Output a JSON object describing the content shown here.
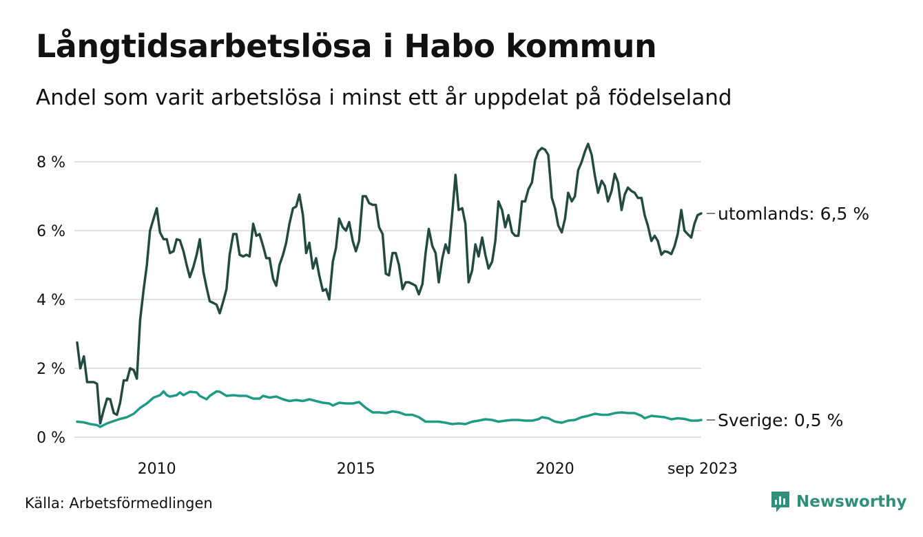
{
  "title": "Långtidsarbetslösa i Habo kommun",
  "subtitle": "Andel som varit arbetslösa i minst ett år uppdelat på födelseland",
  "source": "Källa: Arbetsförmedlingen",
  "brand": {
    "name": "Newsworthy",
    "icon": "newsworthy-logo-icon",
    "color": "#2f8f7a"
  },
  "chart_data": {
    "type": "line",
    "title": "Långtidsarbetslösa i Habo kommun",
    "xlabel": "",
    "ylabel": "",
    "xlim": [
      2008.0,
      2023.67
    ],
    "ylim": [
      0,
      8.6
    ],
    "yticks": [
      0,
      2,
      4,
      6,
      8
    ],
    "ytick_labels": [
      "0 %",
      "2 %",
      "4 %",
      "6 %",
      "8 %"
    ],
    "xticks": [
      2010,
      2015,
      2020,
      2023.67
    ],
    "xtick_labels": [
      "2010",
      "2015",
      "2020",
      "sep 2023"
    ],
    "grid": true,
    "series": [
      {
        "name": "utomlands",
        "end_label": "utomlands: 6,5 %",
        "color": "#234a40",
        "points": [
          [
            2008.0,
            2.75
          ],
          [
            2008.08,
            2.0
          ],
          [
            2008.17,
            2.35
          ],
          [
            2008.25,
            1.6
          ],
          [
            2008.42,
            1.6
          ],
          [
            2008.5,
            1.55
          ],
          [
            2008.58,
            0.4
          ],
          [
            2008.67,
            0.8
          ],
          [
            2008.75,
            1.12
          ],
          [
            2008.83,
            1.1
          ],
          [
            2008.92,
            0.7
          ],
          [
            2009.0,
            0.65
          ],
          [
            2009.08,
            1.0
          ],
          [
            2009.17,
            1.65
          ],
          [
            2009.25,
            1.65
          ],
          [
            2009.33,
            2.0
          ],
          [
            2009.42,
            1.95
          ],
          [
            2009.5,
            1.7
          ],
          [
            2009.58,
            3.4
          ],
          [
            2009.67,
            4.3
          ],
          [
            2009.75,
            5.0
          ],
          [
            2009.83,
            6.0
          ],
          [
            2009.92,
            6.35
          ],
          [
            2010.0,
            6.65
          ],
          [
            2010.08,
            5.95
          ],
          [
            2010.17,
            5.75
          ],
          [
            2010.25,
            5.75
          ],
          [
            2010.33,
            5.35
          ],
          [
            2010.42,
            5.4
          ],
          [
            2010.5,
            5.75
          ],
          [
            2010.58,
            5.72
          ],
          [
            2010.67,
            5.4
          ],
          [
            2010.75,
            5.0
          ],
          [
            2010.83,
            4.65
          ],
          [
            2010.92,
            4.95
          ],
          [
            2011.0,
            5.3
          ],
          [
            2011.08,
            5.75
          ],
          [
            2011.17,
            4.8
          ],
          [
            2011.25,
            4.35
          ],
          [
            2011.33,
            3.95
          ],
          [
            2011.42,
            3.9
          ],
          [
            2011.5,
            3.85
          ],
          [
            2011.58,
            3.6
          ],
          [
            2011.67,
            3.95
          ],
          [
            2011.75,
            4.3
          ],
          [
            2011.83,
            5.3
          ],
          [
            2011.92,
            5.9
          ],
          [
            2012.0,
            5.9
          ],
          [
            2012.08,
            5.3
          ],
          [
            2012.17,
            5.25
          ],
          [
            2012.25,
            5.3
          ],
          [
            2012.33,
            5.25
          ],
          [
            2012.42,
            6.2
          ],
          [
            2012.5,
            5.85
          ],
          [
            2012.58,
            5.9
          ],
          [
            2012.67,
            5.55
          ],
          [
            2012.75,
            5.2
          ],
          [
            2012.83,
            5.2
          ],
          [
            2012.92,
            4.6
          ],
          [
            2013.0,
            4.4
          ],
          [
            2013.08,
            5.0
          ],
          [
            2013.17,
            5.3
          ],
          [
            2013.25,
            5.65
          ],
          [
            2013.33,
            6.2
          ],
          [
            2013.42,
            6.65
          ],
          [
            2013.5,
            6.7
          ],
          [
            2013.58,
            7.05
          ],
          [
            2013.67,
            6.45
          ],
          [
            2013.75,
            5.35
          ],
          [
            2013.83,
            5.65
          ],
          [
            2013.92,
            4.9
          ],
          [
            2014.0,
            5.2
          ],
          [
            2014.08,
            4.7
          ],
          [
            2014.17,
            4.25
          ],
          [
            2014.25,
            4.3
          ],
          [
            2014.33,
            4.0
          ],
          [
            2014.42,
            5.1
          ],
          [
            2014.5,
            5.5
          ],
          [
            2014.58,
            6.35
          ],
          [
            2014.67,
            6.1
          ],
          [
            2014.75,
            6.0
          ],
          [
            2014.83,
            6.25
          ],
          [
            2014.92,
            5.7
          ],
          [
            2015.0,
            5.4
          ],
          [
            2015.08,
            5.7
          ],
          [
            2015.17,
            7.0
          ],
          [
            2015.25,
            7.0
          ],
          [
            2015.33,
            6.8
          ],
          [
            2015.42,
            6.75
          ],
          [
            2015.5,
            6.75
          ],
          [
            2015.58,
            6.1
          ],
          [
            2015.67,
            5.9
          ],
          [
            2015.75,
            4.75
          ],
          [
            2015.83,
            4.7
          ],
          [
            2015.92,
            5.35
          ],
          [
            2016.0,
            5.35
          ],
          [
            2016.08,
            5.0
          ],
          [
            2016.17,
            4.3
          ],
          [
            2016.25,
            4.5
          ],
          [
            2016.33,
            4.5
          ],
          [
            2016.42,
            4.45
          ],
          [
            2016.5,
            4.4
          ],
          [
            2016.58,
            4.15
          ],
          [
            2016.67,
            4.45
          ],
          [
            2016.75,
            5.35
          ],
          [
            2016.83,
            6.05
          ],
          [
            2016.92,
            5.55
          ],
          [
            2017.0,
            5.35
          ],
          [
            2017.08,
            4.5
          ],
          [
            2017.17,
            5.2
          ],
          [
            2017.25,
            5.6
          ],
          [
            2017.33,
            5.35
          ],
          [
            2017.42,
            6.5
          ],
          [
            2017.5,
            7.62
          ],
          [
            2017.58,
            6.6
          ],
          [
            2017.67,
            6.65
          ],
          [
            2017.75,
            6.2
          ],
          [
            2017.83,
            4.5
          ],
          [
            2017.92,
            4.85
          ],
          [
            2018.0,
            5.6
          ],
          [
            2018.08,
            5.25
          ],
          [
            2018.17,
            5.8
          ],
          [
            2018.25,
            5.3
          ],
          [
            2018.33,
            4.9
          ],
          [
            2018.42,
            5.1
          ],
          [
            2018.5,
            5.7
          ],
          [
            2018.58,
            6.85
          ],
          [
            2018.67,
            6.6
          ],
          [
            2018.75,
            6.1
          ],
          [
            2018.83,
            6.45
          ],
          [
            2018.92,
            5.95
          ],
          [
            2019.0,
            5.85
          ],
          [
            2019.08,
            5.85
          ],
          [
            2019.17,
            6.85
          ],
          [
            2019.25,
            6.85
          ],
          [
            2019.33,
            7.2
          ],
          [
            2019.42,
            7.4
          ],
          [
            2019.5,
            8.05
          ],
          [
            2019.58,
            8.3
          ],
          [
            2019.67,
            8.4
          ],
          [
            2019.75,
            8.35
          ],
          [
            2019.83,
            8.2
          ],
          [
            2019.92,
            6.95
          ],
          [
            2020.0,
            6.65
          ],
          [
            2020.08,
            6.15
          ],
          [
            2020.17,
            5.95
          ],
          [
            2020.25,
            6.35
          ],
          [
            2020.33,
            7.1
          ],
          [
            2020.42,
            6.85
          ],
          [
            2020.5,
            7.0
          ],
          [
            2020.58,
            7.75
          ],
          [
            2020.67,
            8.0
          ],
          [
            2020.75,
            8.3
          ],
          [
            2020.83,
            8.52
          ],
          [
            2020.92,
            8.2
          ],
          [
            2021.0,
            7.6
          ],
          [
            2021.08,
            7.1
          ],
          [
            2021.17,
            7.45
          ],
          [
            2021.25,
            7.3
          ],
          [
            2021.33,
            6.85
          ],
          [
            2021.42,
            7.15
          ],
          [
            2021.5,
            7.65
          ],
          [
            2021.58,
            7.4
          ],
          [
            2021.67,
            6.6
          ],
          [
            2021.75,
            7.05
          ],
          [
            2021.83,
            7.25
          ],
          [
            2021.92,
            7.15
          ],
          [
            2022.0,
            7.1
          ],
          [
            2022.08,
            6.95
          ],
          [
            2022.17,
            6.95
          ],
          [
            2022.25,
            6.45
          ],
          [
            2022.33,
            6.15
          ],
          [
            2022.42,
            5.7
          ],
          [
            2022.5,
            5.85
          ],
          [
            2022.58,
            5.7
          ],
          [
            2022.67,
            5.3
          ],
          [
            2022.75,
            5.4
          ],
          [
            2022.83,
            5.38
          ],
          [
            2022.92,
            5.32
          ],
          [
            2023.0,
            5.55
          ],
          [
            2023.08,
            5.9
          ],
          [
            2023.17,
            6.6
          ],
          [
            2023.25,
            6.0
          ],
          [
            2023.33,
            5.9
          ],
          [
            2023.42,
            5.8
          ],
          [
            2023.5,
            6.2
          ],
          [
            2023.58,
            6.45
          ],
          [
            2023.67,
            6.5
          ]
        ]
      },
      {
        "name": "Sverige",
        "end_label": "Sverige: 0,5 %",
        "color": "#1f9a86",
        "points": [
          [
            2008.0,
            0.45
          ],
          [
            2008.17,
            0.43
          ],
          [
            2008.33,
            0.38
          ],
          [
            2008.5,
            0.35
          ],
          [
            2008.58,
            0.3
          ],
          [
            2008.75,
            0.4
          ],
          [
            2008.92,
            0.47
          ],
          [
            2009.08,
            0.53
          ],
          [
            2009.25,
            0.58
          ],
          [
            2009.42,
            0.68
          ],
          [
            2009.58,
            0.85
          ],
          [
            2009.75,
            0.98
          ],
          [
            2009.92,
            1.15
          ],
          [
            2010.08,
            1.22
          ],
          [
            2010.17,
            1.33
          ],
          [
            2010.25,
            1.22
          ],
          [
            2010.33,
            1.18
          ],
          [
            2010.5,
            1.22
          ],
          [
            2010.58,
            1.3
          ],
          [
            2010.67,
            1.22
          ],
          [
            2010.75,
            1.27
          ],
          [
            2010.83,
            1.32
          ],
          [
            2011.0,
            1.3
          ],
          [
            2011.08,
            1.2
          ],
          [
            2011.25,
            1.1
          ],
          [
            2011.33,
            1.2
          ],
          [
            2011.5,
            1.33
          ],
          [
            2011.58,
            1.32
          ],
          [
            2011.75,
            1.2
          ],
          [
            2011.92,
            1.22
          ],
          [
            2012.08,
            1.2
          ],
          [
            2012.25,
            1.2
          ],
          [
            2012.42,
            1.12
          ],
          [
            2012.58,
            1.12
          ],
          [
            2012.67,
            1.2
          ],
          [
            2012.83,
            1.15
          ],
          [
            2013.0,
            1.18
          ],
          [
            2013.17,
            1.1
          ],
          [
            2013.33,
            1.05
          ],
          [
            2013.5,
            1.08
          ],
          [
            2013.67,
            1.05
          ],
          [
            2013.83,
            1.1
          ],
          [
            2014.0,
            1.05
          ],
          [
            2014.17,
            1.0
          ],
          [
            2014.33,
            0.98
          ],
          [
            2014.42,
            0.92
          ],
          [
            2014.58,
            1.0
          ],
          [
            2014.75,
            0.98
          ],
          [
            2014.92,
            0.98
          ],
          [
            2015.08,
            1.02
          ],
          [
            2015.25,
            0.85
          ],
          [
            2015.42,
            0.72
          ],
          [
            2015.58,
            0.72
          ],
          [
            2015.75,
            0.7
          ],
          [
            2015.92,
            0.75
          ],
          [
            2016.08,
            0.72
          ],
          [
            2016.25,
            0.65
          ],
          [
            2016.42,
            0.65
          ],
          [
            2016.58,
            0.58
          ],
          [
            2016.75,
            0.45
          ],
          [
            2016.92,
            0.45
          ],
          [
            2017.08,
            0.45
          ],
          [
            2017.25,
            0.42
          ],
          [
            2017.42,
            0.38
          ],
          [
            2017.58,
            0.4
          ],
          [
            2017.75,
            0.38
          ],
          [
            2017.92,
            0.45
          ],
          [
            2018.08,
            0.48
          ],
          [
            2018.25,
            0.52
          ],
          [
            2018.42,
            0.5
          ],
          [
            2018.58,
            0.45
          ],
          [
            2018.75,
            0.48
          ],
          [
            2018.92,
            0.5
          ],
          [
            2019.08,
            0.5
          ],
          [
            2019.25,
            0.48
          ],
          [
            2019.42,
            0.48
          ],
          [
            2019.58,
            0.52
          ],
          [
            2019.67,
            0.58
          ],
          [
            2019.83,
            0.55
          ],
          [
            2020.0,
            0.45
          ],
          [
            2020.17,
            0.42
          ],
          [
            2020.33,
            0.48
          ],
          [
            2020.5,
            0.5
          ],
          [
            2020.67,
            0.58
          ],
          [
            2020.83,
            0.62
          ],
          [
            2021.0,
            0.68
          ],
          [
            2021.17,
            0.65
          ],
          [
            2021.33,
            0.65
          ],
          [
            2021.5,
            0.7
          ],
          [
            2021.67,
            0.72
          ],
          [
            2021.83,
            0.7
          ],
          [
            2022.0,
            0.7
          ],
          [
            2022.17,
            0.62
          ],
          [
            2022.25,
            0.55
          ],
          [
            2022.42,
            0.62
          ],
          [
            2022.58,
            0.6
          ],
          [
            2022.75,
            0.58
          ],
          [
            2022.92,
            0.52
          ],
          [
            2023.08,
            0.55
          ],
          [
            2023.25,
            0.53
          ],
          [
            2023.42,
            0.48
          ],
          [
            2023.58,
            0.48
          ],
          [
            2023.67,
            0.5
          ]
        ]
      }
    ]
  }
}
